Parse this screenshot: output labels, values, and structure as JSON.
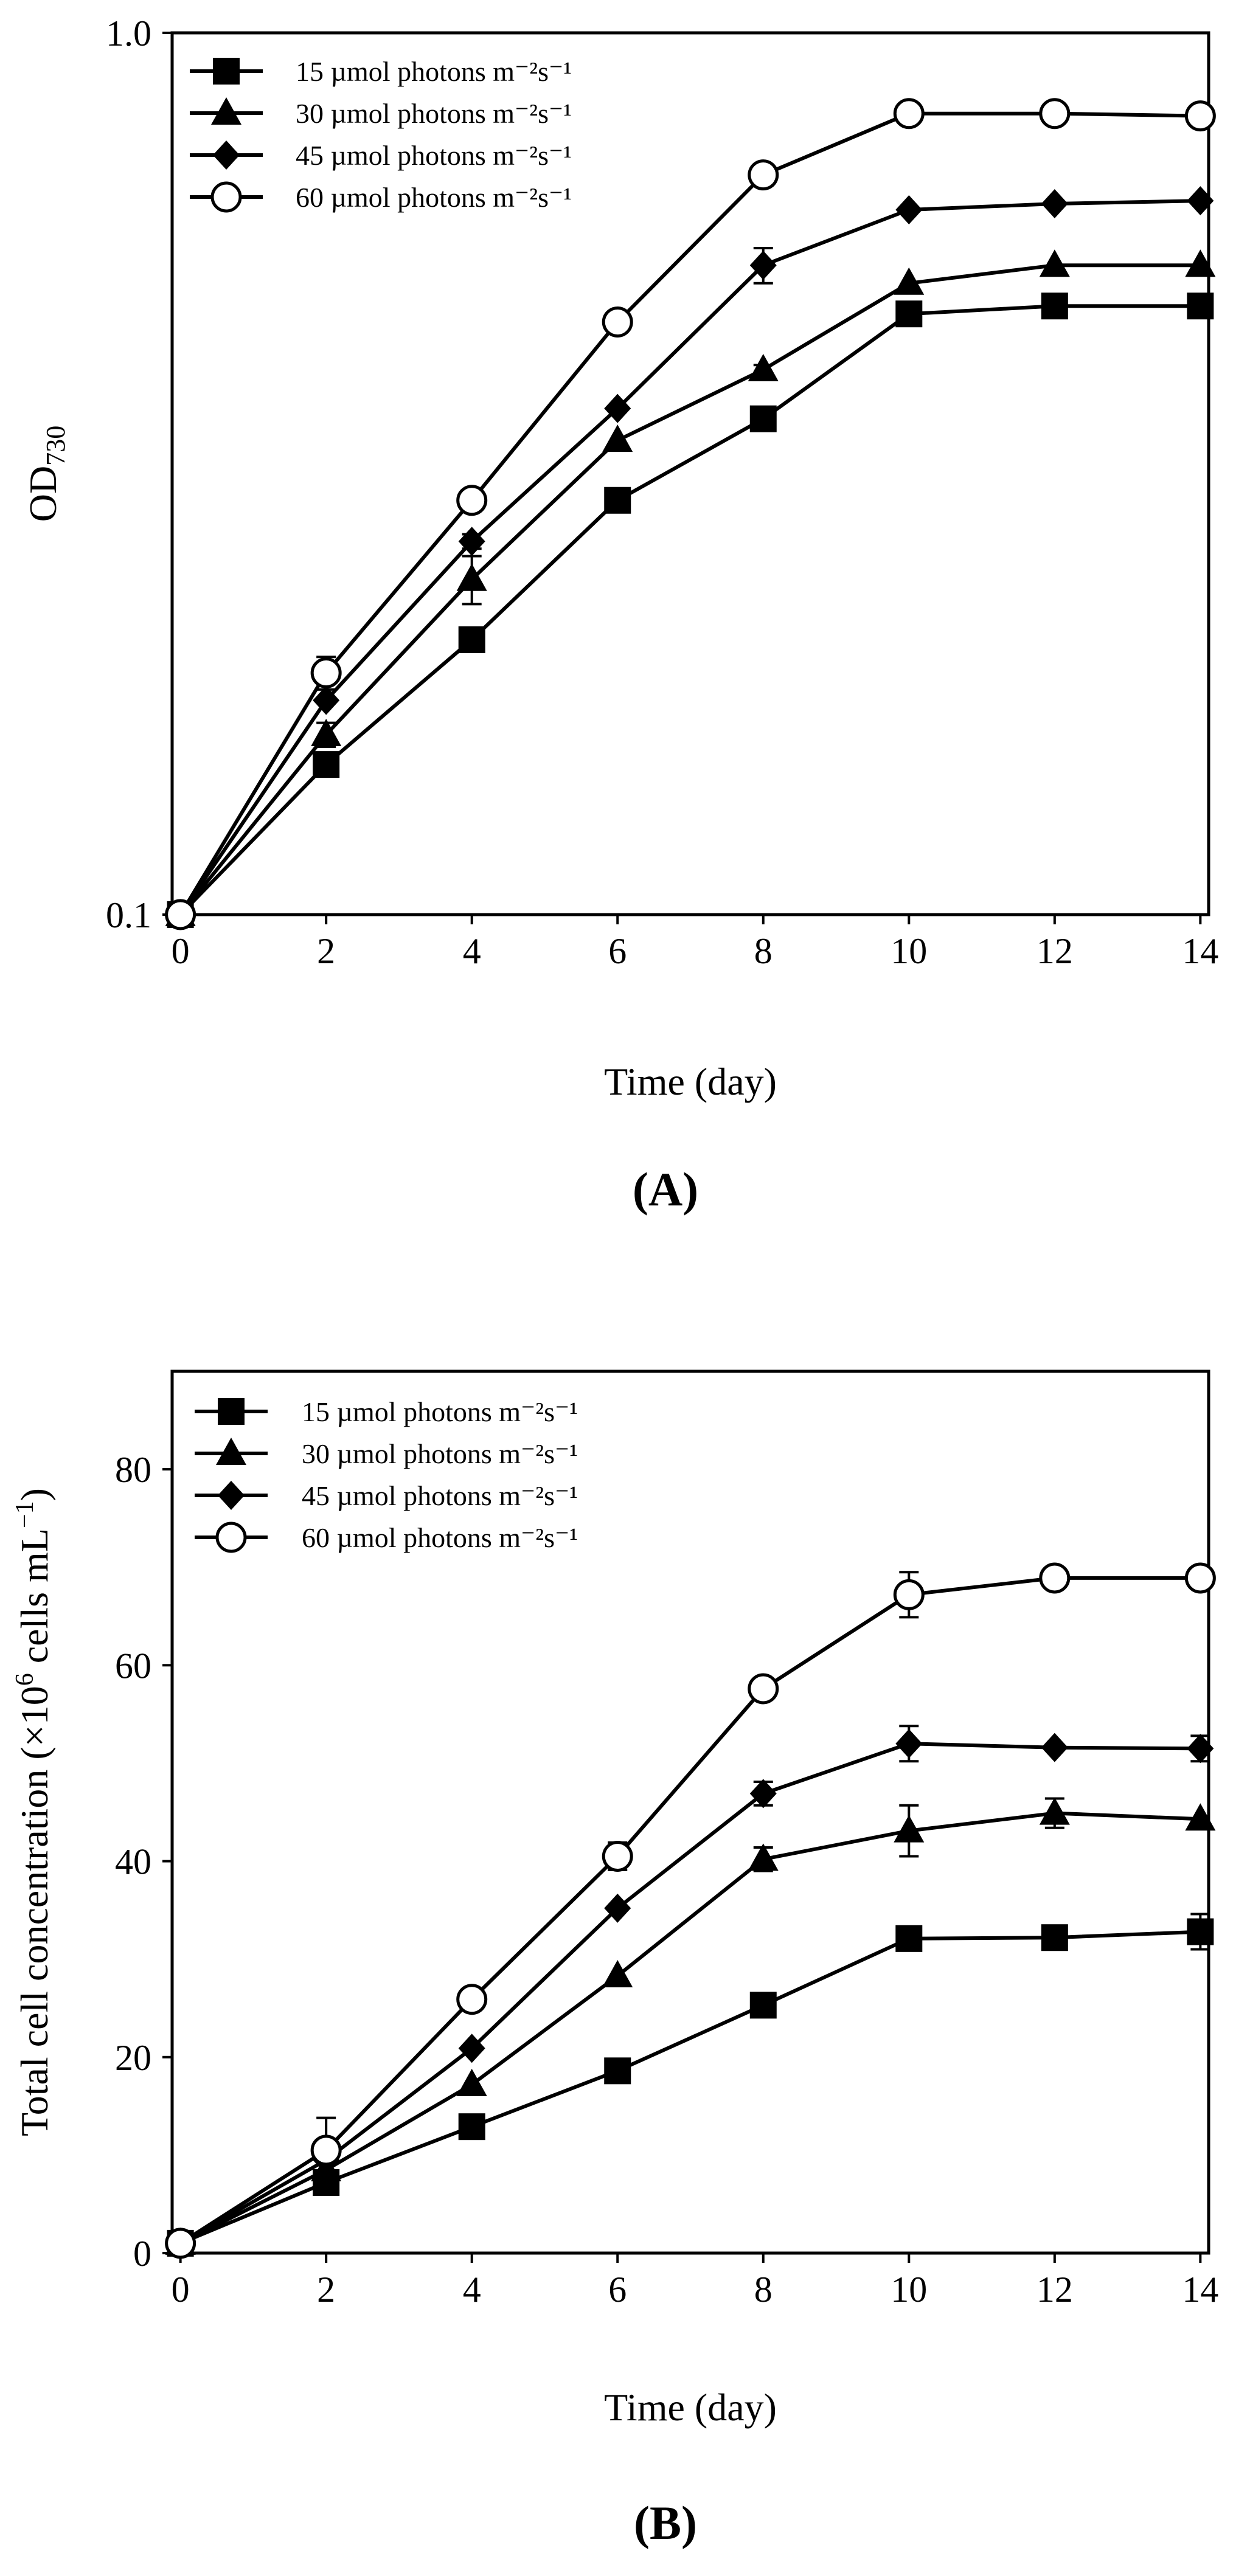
{
  "chart_data": [
    {
      "panel": "A",
      "panel_label_open": "(",
      "panel_label_letter": "A",
      "panel_label_close": ")",
      "type": "line",
      "yscale": "log",
      "xlabel": "Time (day)",
      "ylabel_main": "OD",
      "ylabel_sub": "730",
      "xlim": [
        0,
        14
      ],
      "ylim": [
        0.1,
        1.0
      ],
      "xticks": [
        0,
        2,
        4,
        6,
        8,
        10,
        12,
        14
      ],
      "yticks": [
        0.1,
        1.0
      ],
      "ytick_labels": [
        "0.1",
        "1.0"
      ],
      "legend_position": "top-left",
      "x": [
        0,
        2,
        4,
        6,
        8,
        10,
        12,
        14
      ],
      "series": [
        {
          "name": "15 µmol photons m⁻²s⁻¹",
          "marker": "square",
          "values": [
            0.1,
            0.148,
            0.205,
            0.295,
            0.365,
            0.48,
            0.49,
            0.49
          ],
          "errors": [
            0,
            0,
            0,
            0,
            0,
            0,
            0,
            0
          ]
        },
        {
          "name": "30 µmol photons m⁻²s⁻¹",
          "marker": "triangle",
          "values": [
            0.1,
            0.16,
            0.24,
            0.345,
            0.415,
            0.52,
            0.545,
            0.545
          ],
          "errors": [
            0,
            0.005,
            0.015,
            0,
            0.005,
            0,
            0,
            0
          ]
        },
        {
          "name": "45 µmol photons m⁻²s⁻¹",
          "marker": "diamond",
          "values": [
            0.1,
            0.175,
            0.265,
            0.375,
            0.545,
            0.63,
            0.64,
            0.645
          ],
          "errors": [
            0,
            0,
            0.005,
            0,
            0.025,
            0,
            0,
            0
          ]
        },
        {
          "name": "60 µmol photons m⁻²s⁻¹",
          "marker": "circle",
          "values": [
            0.1,
            0.188,
            0.295,
            0.47,
            0.69,
            0.81,
            0.81,
            0.805
          ],
          "errors": [
            0,
            0.008,
            0,
            0,
            0,
            0,
            0,
            0
          ]
        }
      ]
    },
    {
      "panel": "B",
      "panel_label_open": "(",
      "panel_label_letter": "B",
      "panel_label_close": ")",
      "type": "line",
      "yscale": "linear",
      "xlabel": "Time (day)",
      "ylabel_part1": "Total cell concentration (×10",
      "ylabel_sup1": "6",
      "ylabel_part2": " cells mL",
      "ylabel_sup2": "−1",
      "ylabel_part3": ")",
      "xlim": [
        0,
        14
      ],
      "ylim": [
        0,
        90
      ],
      "xticks": [
        0,
        2,
        4,
        6,
        8,
        10,
        12,
        14
      ],
      "yticks": [
        0,
        20,
        40,
        60,
        80
      ],
      "legend_position": "top-left",
      "x": [
        0,
        2,
        4,
        6,
        8,
        10,
        12,
        14
      ],
      "series": [
        {
          "name": "15 µmol photons m⁻²s⁻¹",
          "marker": "square",
          "values": [
            1,
            7.2,
            12.9,
            18.6,
            25.3,
            32.1,
            32.2,
            32.8
          ],
          "errors": [
            0,
            0,
            0,
            0,
            0,
            0,
            0,
            1.8
          ]
        },
        {
          "name": "30 µmol photons m⁻²s⁻¹",
          "marker": "triangle",
          "values": [
            1,
            8.5,
            17.2,
            28.3,
            40.2,
            43.1,
            44.9,
            44.3
          ],
          "errors": [
            0,
            0,
            0,
            0,
            1.2,
            2.6,
            1.5,
            0
          ]
        },
        {
          "name": "45 µmol photons m⁻²s⁻¹",
          "marker": "diamond",
          "values": [
            1,
            9.5,
            20.9,
            35.2,
            46.9,
            52.0,
            51.6,
            51.5
          ],
          "errors": [
            0,
            0,
            0,
            0,
            1.2,
            1.8,
            0,
            1.3
          ]
        },
        {
          "name": "60 µmol photons m⁻²s⁻¹",
          "marker": "circle",
          "values": [
            1,
            10.5,
            25.9,
            40.5,
            57.6,
            67.2,
            68.9,
            68.9
          ],
          "errors": [
            0,
            3.3,
            0,
            1.4,
            0,
            2.3,
            0,
            0
          ]
        }
      ]
    }
  ]
}
